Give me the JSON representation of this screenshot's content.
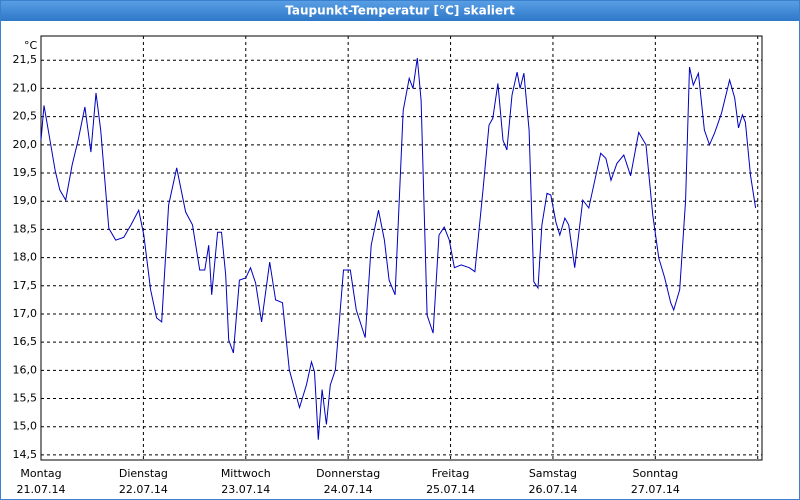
{
  "chart_data": {
    "type": "line",
    "title": "Taupunkt-Temperatur [°C] skaliert",
    "y_unit": "°C",
    "color": "#0000c0",
    "grid": true,
    "xlim": [
      0,
      169
    ],
    "ylim": [
      14.41,
      21.93
    ],
    "xticks": [
      {
        "value": 0,
        "label": "Montag",
        "date": "21.07.14"
      },
      {
        "value": 24,
        "label": "Dienstag",
        "date": "22.07.14"
      },
      {
        "value": 48,
        "label": "Mittwoch",
        "date": "23.07.14"
      },
      {
        "value": 72,
        "label": "Donnerstag",
        "date": "24.07.14"
      },
      {
        "value": 96,
        "label": "Freitag",
        "date": "25.07.14"
      },
      {
        "value": 120,
        "label": "Samstag",
        "date": "26.07.14"
      },
      {
        "value": 144,
        "label": "Sonntag",
        "date": "27.07.14"
      },
      {
        "value": 168
      }
    ],
    "yticks": [
      {
        "value": 14.5,
        "label": "14,5"
      },
      {
        "value": 15,
        "label": "15,0"
      },
      {
        "value": 15.5,
        "label": "15,5"
      },
      {
        "value": 16,
        "label": "16,0"
      },
      {
        "value": 16.5,
        "label": "16,5"
      },
      {
        "value": 17,
        "label": "17,0"
      },
      {
        "value": 17.5,
        "label": "17,5"
      },
      {
        "value": 18,
        "label": "18,0"
      },
      {
        "value": 18.5,
        "label": "18,5"
      },
      {
        "value": 19,
        "label": "19,0"
      },
      {
        "value": 19.5,
        "label": "19,5"
      },
      {
        "value": 20,
        "label": "20,0"
      },
      {
        "value": 20.5,
        "label": "20,5"
      },
      {
        "value": 21,
        "label": "21,0"
      },
      {
        "value": 21.5,
        "label": "21,5"
      }
    ],
    "x": [
      0,
      0.7,
      2.1,
      3.3,
      4.4,
      5.8,
      7.3,
      8.7,
      10.3,
      11.7,
      12.9,
      14.0,
      15.9,
      17.5,
      19.4,
      21.1,
      22.9,
      24.1,
      25.7,
      27.1,
      28.3,
      29.9,
      31.8,
      33.9,
      35.5,
      37.2,
      38.4,
      39.3,
      40.0,
      41.4,
      42.3,
      43.3,
      44.0,
      45.1,
      46.5,
      48.0,
      49.1,
      50.3,
      51.7,
      53.6,
      55.0,
      56.6,
      58.2,
      60.6,
      62.2,
      63.4,
      64.1,
      65.0,
      65.9,
      66.9,
      67.8,
      69.0,
      70.9,
      72.5,
      73.9,
      76.0,
      77.4,
      79.1,
      80.5,
      81.6,
      83.0,
      84.9,
      86.3,
      87.2,
      88.2,
      89.1,
      90.5,
      91.9,
      93.3,
      94.5,
      95.7,
      96.9,
      98.5,
      100.4,
      101.7,
      103.6,
      105.0,
      105.9,
      107.1,
      108.3,
      109.2,
      110.4,
      111.6,
      112.3,
      113.2,
      114.4,
      115.5,
      116.5,
      117.4,
      118.6,
      119.5,
      120.7,
      121.6,
      122.8,
      123.7,
      125.1,
      127.0,
      128.4,
      129.8,
      131.2,
      132.4,
      133.6,
      135.0,
      136.6,
      138.2,
      140.1,
      141.8,
      143.4,
      144.8,
      146.2,
      147.6,
      148.3,
      149.7,
      151.1,
      152.0,
      152.9,
      154.1,
      155.5,
      156.7,
      157.9,
      159.5,
      161.4,
      162.6,
      163.5,
      164.4,
      165.1,
      166.3,
      167.5
    ],
    "values": [
      20.08,
      20.7,
      20.08,
      19.55,
      19.2,
      19.02,
      19.64,
      20.08,
      20.67,
      19.87,
      20.92,
      20.26,
      18.52,
      18.31,
      18.36,
      18.58,
      18.84,
      18.4,
      17.43,
      16.93,
      16.86,
      18.93,
      19.59,
      18.81,
      18.58,
      17.78,
      17.78,
      18.22,
      17.34,
      18.45,
      18.45,
      17.69,
      16.54,
      16.31,
      17.6,
      17.64,
      17.82,
      17.55,
      16.86,
      17.92,
      17.25,
      17.2,
      16.01,
      15.34,
      15.74,
      16.15,
      15.97,
      14.77,
      15.66,
      15.04,
      15.74,
      16.01,
      17.78,
      17.78,
      17.07,
      16.58,
      18.22,
      18.84,
      18.31,
      17.6,
      17.34,
      20.61,
      21.18,
      21.0,
      21.54,
      20.79,
      16.98,
      16.66,
      18.4,
      18.54,
      18.31,
      17.82,
      17.87,
      17.82,
      17.75,
      19.2,
      20.35,
      20.47,
      21.09,
      20.08,
      19.91,
      20.88,
      21.29,
      21.0,
      21.27,
      20.26,
      17.57,
      17.46,
      18.58,
      19.14,
      19.11,
      18.63,
      18.4,
      18.7,
      18.58,
      17.82,
      19.02,
      18.88,
      19.37,
      19.85,
      19.76,
      19.37,
      19.67,
      19.82,
      19.45,
      20.22,
      20.0,
      18.75,
      17.99,
      17.64,
      17.2,
      17.07,
      17.43,
      19.02,
      21.38,
      21.06,
      21.27,
      20.26,
      20.0,
      20.21,
      20.56,
      21.15,
      20.83,
      20.3,
      20.53,
      20.4,
      19.46,
      18.88
    ]
  }
}
